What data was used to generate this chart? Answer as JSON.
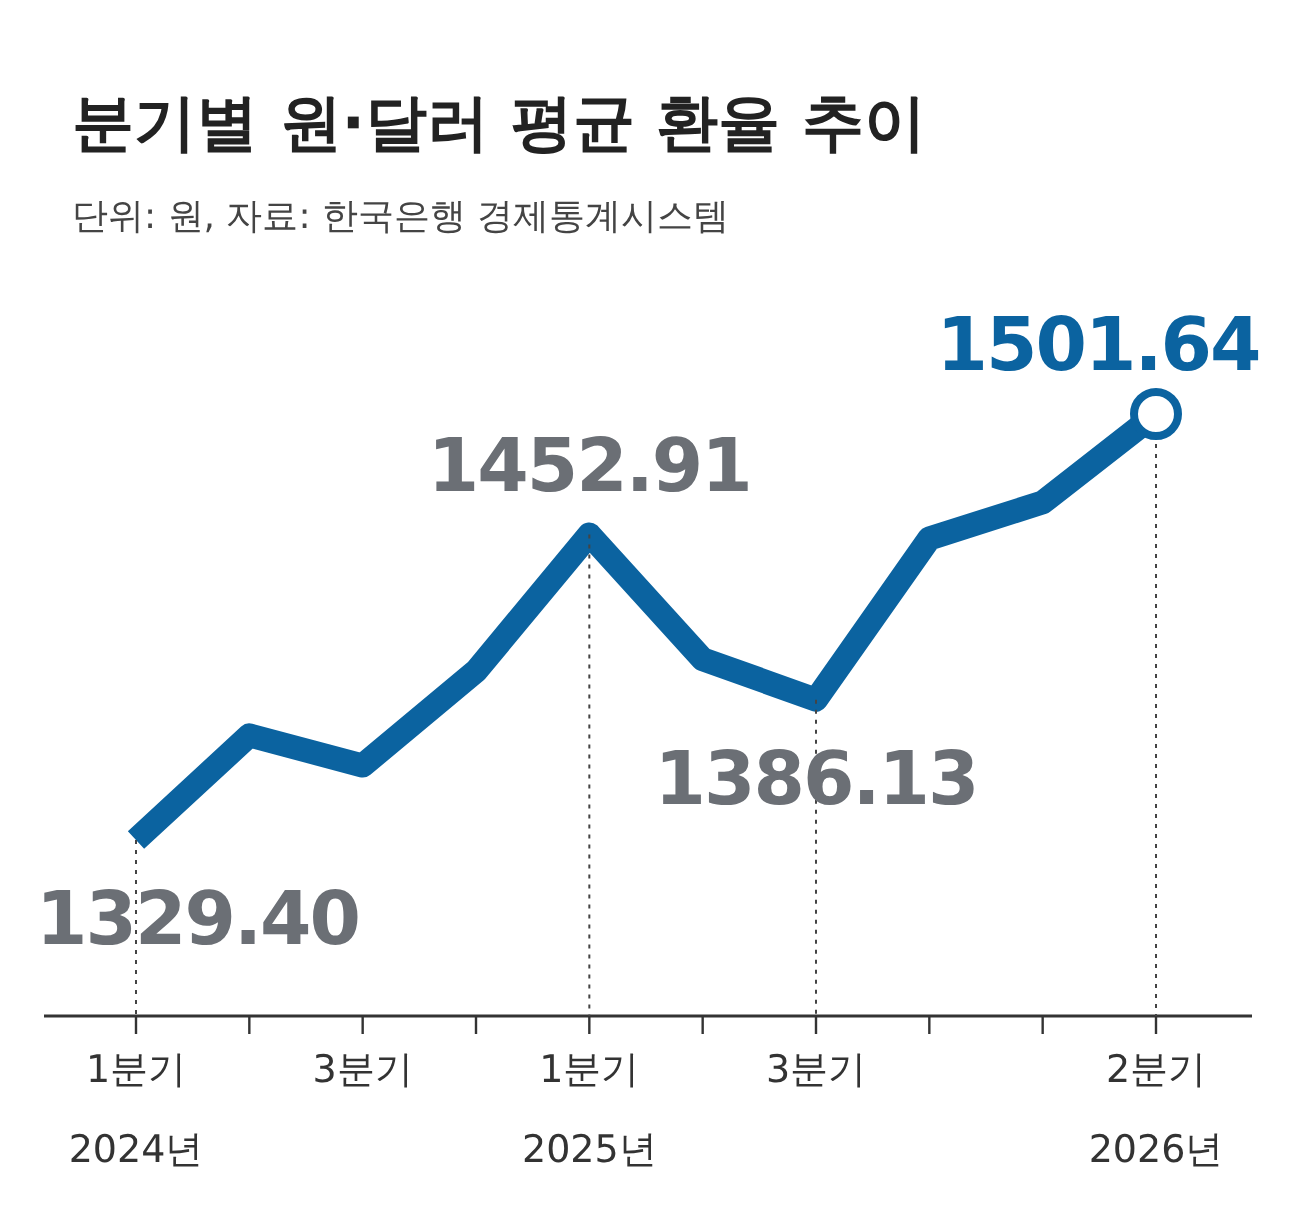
{
  "chart_data": {
    "type": "line",
    "title": "분기별 원·달러 평균 환율 추이",
    "subtitle": "단위: 원, 자료: 한국은행 경제통계시스템",
    "categories": [
      "1분기 2024년",
      null,
      "3분기",
      null,
      "1분기 2025년",
      null,
      "3분기",
      null,
      null,
      "2분기 2026년"
    ],
    "series": [
      {
        "type": "line",
        "color": "#0b63a0",
        "values": [
          1329.4,
          1371.7,
          1359.5,
          1397.7,
          1452.91,
          1402.5,
          1386.13,
          1451.3,
          1465.9,
          1501.64
        ],
        "value_labels": [
          "1329.40",
          null,
          null,
          null,
          "1452.91",
          null,
          "1386.13",
          null,
          null,
          "1501.64"
        ]
      },
      {
        "type": "scatter",
        "color": "#0b63a0",
        "marker": "circle",
        "x": [
          "2분기 2026년"
        ],
        "values": [
          1501.64
        ]
      }
    ],
    "grid": "x"
  }
}
